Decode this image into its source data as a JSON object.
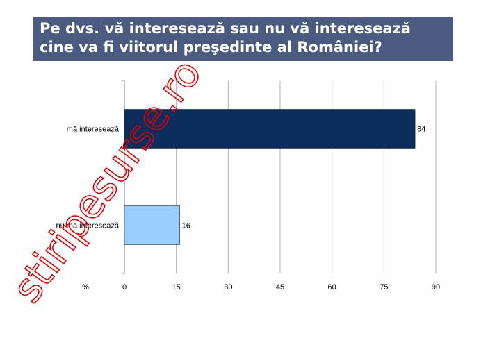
{
  "title": {
    "line1": "Pe dvs. vă interesează sau nu vă interesează",
    "line2": "cine va fi viitorul preşedinte al României?"
  },
  "chart_data": {
    "type": "bar",
    "orientation": "horizontal",
    "categories": [
      "mă interesează",
      "nu mă interesează"
    ],
    "values": [
      84,
      16
    ],
    "colors": [
      "#0c2d5c",
      "#99ccff"
    ],
    "xlim": [
      0,
      90
    ],
    "xticks": [
      0,
      15,
      30,
      45,
      60,
      75,
      90
    ],
    "xlabel": "%",
    "grid": true
  },
  "watermark": {
    "text": "stiripesurse.ro",
    "color": "#e00000"
  }
}
